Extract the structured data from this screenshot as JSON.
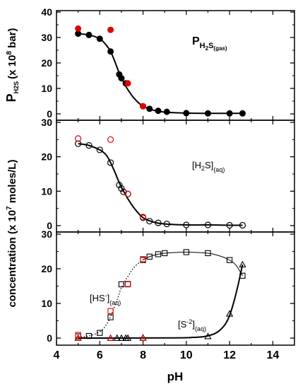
{
  "chart_data": [
    {
      "type": "scatter",
      "panel": "top",
      "annotation": {
        "main": "P",
        "sub_main": "H",
        "sub_num": "2",
        "sub_s": "S",
        "sub_tail": "(gas)"
      },
      "ylabel": {
        "main": "P",
        "sub": "H2S",
        "tail": "(x 10",
        "exp": "8",
        "tail2": " bar)"
      },
      "xlim": [
        4,
        15
      ],
      "ylim": [
        0,
        40
      ],
      "yticks": [
        "0",
        "10",
        "20",
        "30",
        "40"
      ],
      "series": [
        {
          "marker": "filled-circle",
          "color": "#000000",
          "x": [
            5.0,
            5.5,
            6.0,
            6.5,
            6.9,
            7.0,
            7.2,
            8.0,
            8.3,
            8.7,
            9.1,
            10.0,
            11.0,
            12.0,
            12.6
          ],
          "y": [
            31.5,
            31.0,
            29.5,
            24.5,
            15.5,
            14.0,
            12.0,
            3.0,
            2.0,
            1.2,
            0.8,
            0.3,
            0.2,
            0.2,
            0.2
          ]
        },
        {
          "marker": "filled-circle",
          "color": "#e00000",
          "x": [
            5.0,
            6.5,
            7.3,
            8.0
          ],
          "y": [
            33.5,
            33.0,
            12.0,
            3.0
          ]
        }
      ],
      "curve": {
        "style": "solid",
        "x": [
          5.0,
          5.5,
          6.0,
          6.3,
          6.5,
          6.7,
          6.9,
          7.1,
          7.3,
          7.6,
          8.0,
          8.5,
          9.0,
          10.0,
          11.0,
          12.0,
          12.6
        ],
        "y": [
          31.5,
          31.0,
          29.5,
          27.0,
          24.5,
          20.5,
          16.0,
          12.5,
          9.5,
          6.0,
          3.0,
          1.4,
          0.7,
          0.3,
          0.2,
          0.2,
          0.2
        ]
      }
    },
    {
      "type": "scatter",
      "panel": "middle",
      "annotation": {
        "main": "[H",
        "num": "2",
        "tail": "S]",
        "sub": "(aq)"
      },
      "xlim": [
        4,
        15
      ],
      "ylim": [
        0,
        30
      ],
      "yticks": [
        "0",
        "10",
        "20",
        "30"
      ],
      "series": [
        {
          "marker": "open-circle",
          "color": "#000000",
          "x": [
            5.0,
            5.5,
            6.0,
            6.5,
            6.9,
            7.0,
            7.1,
            7.3,
            8.0,
            8.3,
            8.7,
            9.1,
            10.0,
            11.0,
            12.0,
            12.6
          ],
          "y": [
            23.8,
            23.3,
            22.0,
            18.3,
            11.8,
            10.8,
            9.8,
            9.2,
            2.3,
            1.3,
            0.8,
            0.5,
            0.2,
            0.2,
            0.1,
            0.1
          ]
        },
        {
          "marker": "open-circle",
          "color": "#e00000",
          "x": [
            5.0,
            6.5,
            7.3,
            8.0
          ],
          "y": [
            25.3,
            25.0,
            9.2,
            2.5
          ]
        }
      ],
      "curve": {
        "style": "solid",
        "x": [
          5.0,
          5.5,
          6.0,
          6.3,
          6.5,
          6.7,
          6.9,
          7.1,
          7.3,
          7.6,
          8.0,
          8.5,
          9.0,
          10.0,
          11.0,
          12.0,
          12.6
        ],
        "y": [
          23.8,
          23.3,
          22.0,
          20.5,
          18.3,
          15.5,
          12.5,
          10.0,
          7.8,
          5.0,
          2.3,
          1.0,
          0.5,
          0.2,
          0.2,
          0.1,
          0.1
        ]
      }
    },
    {
      "type": "scatter",
      "panel": "bottom",
      "annotation_hs": {
        "main": "[HS",
        "sup": "-",
        "tail": "]",
        "sub": "(aq)"
      },
      "annotation_s": {
        "main": "[S",
        "sup": "-2",
        "tail": "]",
        "sub": "(aq)"
      },
      "xlabel": "pH",
      "xlim": [
        4,
        15
      ],
      "ylim": [
        0,
        30
      ],
      "xticks": [
        "4",
        "6",
        "8",
        "10",
        "12",
        "14"
      ],
      "yticks": [
        "0",
        "10",
        "20",
        "30"
      ],
      "series": [
        {
          "marker": "open-square",
          "color": "#000000",
          "x": [
            5.0,
            5.5,
            6.0,
            6.5,
            7.0,
            7.3,
            8.0,
            8.3,
            8.7,
            9.0,
            10.0,
            11.0,
            12.0,
            12.6
          ],
          "y": [
            0.5,
            0.6,
            1.5,
            6.0,
            15.5,
            15.6,
            22.5,
            23.5,
            24.2,
            24.5,
            24.8,
            24.5,
            22.5,
            18.0
          ]
        },
        {
          "marker": "open-square",
          "color": "#e00000",
          "x": [
            5.0,
            6.5,
            7.3,
            8.0
          ],
          "y": [
            0.9,
            7.8,
            15.5,
            22.8
          ]
        },
        {
          "marker": "open-triangle",
          "color": "#000000",
          "x": [
            5.0,
            6.5,
            6.8,
            7.0,
            7.2,
            7.3,
            8.0,
            11.0,
            12.0,
            12.6
          ],
          "y": [
            0.0,
            0.0,
            0.0,
            0.0,
            0.0,
            0.0,
            0.1,
            0.5,
            7.0,
            21.2
          ]
        },
        {
          "marker": "open-triangle",
          "color": "#e00000",
          "x": [
            5.0,
            6.5,
            8.0
          ],
          "y": [
            0.0,
            0.0,
            0.0
          ]
        }
      ],
      "curves": [
        {
          "style": "dotted",
          "x": [
            5.0,
            5.5,
            6.0,
            6.3,
            6.5,
            6.8,
            7.0,
            7.3,
            7.6,
            8.0
          ],
          "y": [
            0.3,
            0.6,
            1.8,
            3.8,
            6.2,
            11.0,
            14.5,
            17.8,
            20.5,
            22.6
          ]
        },
        {
          "style": "solid-thin",
          "x": [
            8.0,
            8.3,
            8.7,
            9.0,
            9.5,
            10.0,
            11.0,
            11.5,
            12.0,
            12.3,
            12.6
          ],
          "y": [
            22.6,
            23.5,
            24.2,
            24.5,
            24.7,
            24.8,
            24.5,
            23.8,
            22.5,
            21.0,
            18.0
          ]
        },
        {
          "style": "solid",
          "x": [
            5.0,
            7.0,
            9.0,
            10.0,
            10.8,
            11.2,
            11.5,
            11.8,
            12.0,
            12.2,
            12.4,
            12.6
          ],
          "y": [
            0.0,
            0.0,
            0.05,
            0.1,
            0.4,
            1.0,
            2.0,
            4.0,
            6.5,
            10.5,
            15.5,
            21.2
          ]
        }
      ]
    }
  ],
  "shared_ylabel": {
    "main": "concentration (x 10",
    "exp": "7",
    "tail": " moles/L)"
  }
}
